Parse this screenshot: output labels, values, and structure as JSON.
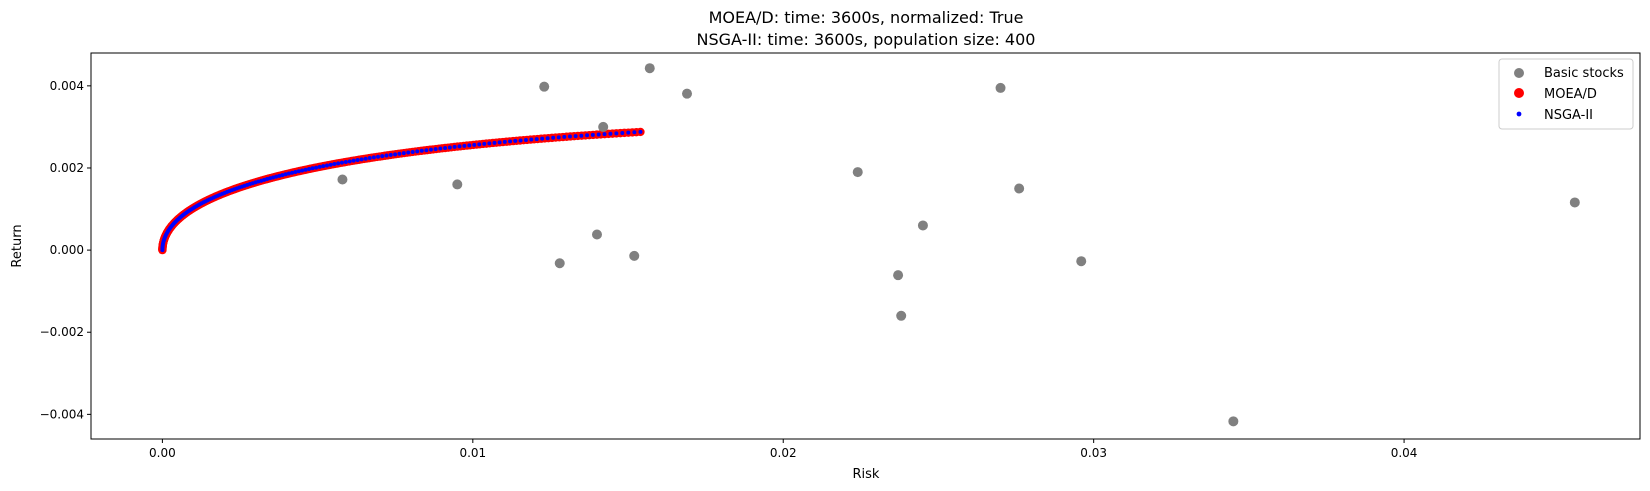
{
  "chart_data": {
    "type": "scatter",
    "title_lines": [
      "MOEA/D: time: 3600s, normalized: True",
      "NSGA-II: time: 3600s, population size: 400"
    ],
    "xlabel": "Risk",
    "ylabel": "Return",
    "xlim": [
      -0.0023,
      0.0476
    ],
    "ylim": [
      -0.0046,
      0.0048
    ],
    "x_ticks": [
      0.0,
      0.01,
      0.02,
      0.03,
      0.04
    ],
    "x_tick_labels": [
      "0.00",
      "0.01",
      "0.02",
      "0.03",
      "0.04"
    ],
    "y_ticks": [
      -0.004,
      -0.002,
      0.0,
      0.002,
      0.004
    ],
    "y_tick_labels": [
      "−0.004",
      "−0.002",
      "0.000",
      "0.002",
      "0.004"
    ],
    "grid": false,
    "legend_position": "top-right",
    "series": [
      {
        "name": "Basic stocks",
        "color": "#808080",
        "marker": "large-dot",
        "points": [
          [
            0.0058,
            0.00172
          ],
          [
            0.0095,
            0.0016
          ],
          [
            0.0123,
            0.00398
          ],
          [
            0.0128,
            -0.00032
          ],
          [
            0.014,
            0.00038
          ],
          [
            0.0142,
            0.003
          ],
          [
            0.0152,
            -0.00014
          ],
          [
            0.0157,
            0.00443
          ],
          [
            0.0169,
            0.00381
          ],
          [
            0.0224,
            0.0019
          ],
          [
            0.0237,
            -0.00061
          ],
          [
            0.0238,
            -0.0016
          ],
          [
            0.0245,
            0.0006
          ],
          [
            0.027,
            0.00395
          ],
          [
            0.0276,
            0.0015
          ],
          [
            0.0296,
            -0.00027
          ],
          [
            0.0345,
            -0.00417
          ],
          [
            0.0455,
            0.00116
          ]
        ]
      },
      {
        "name": "MOEA/D",
        "color": "#ff0000",
        "marker": "dense-dots",
        "x_start": 0.0,
        "x_end": 0.0154,
        "curve": "frontier"
      },
      {
        "name": "NSGA-II",
        "color": "#0000ff",
        "marker": "small-dot",
        "x_start": 0.0,
        "x_end": 0.0154,
        "curve": "frontier"
      }
    ]
  },
  "legend": {
    "items": [
      {
        "label": "Basic stocks",
        "color": "#808080",
        "marker": "large-dot"
      },
      {
        "label": "MOEA/D",
        "color": "#ff0000",
        "marker": "large-dot"
      },
      {
        "label": "NSGA-II",
        "color": "#0000ff",
        "marker": "small-dot"
      }
    ]
  }
}
